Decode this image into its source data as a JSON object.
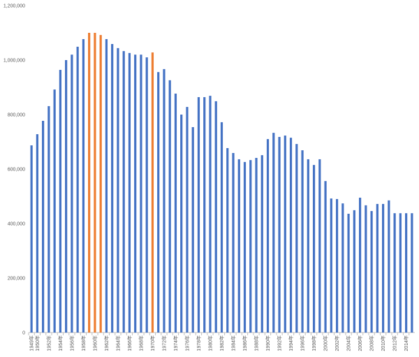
{
  "chart_data": {
    "type": "bar",
    "categories": [
      "1949年",
      "1950年",
      null,
      "1952年",
      null,
      "1954年",
      null,
      "1956年",
      null,
      "1958年",
      null,
      "1960年",
      null,
      "1962年",
      null,
      "1964年",
      null,
      "1966年",
      null,
      "1968年",
      null,
      "1970年",
      null,
      "1972年",
      null,
      "1974年",
      null,
      "1976年",
      null,
      "1978年",
      null,
      "1980年",
      null,
      "1982年",
      null,
      "1984年",
      null,
      "1986年",
      null,
      "1988年",
      null,
      "1990年",
      null,
      "1992年",
      null,
      "1994年",
      null,
      "1996年",
      null,
      "1998年",
      null,
      "2000年",
      null,
      "2002年",
      null,
      "2004年",
      null,
      "2006年",
      null,
      "2008年",
      null,
      "2010年",
      null,
      "2012年",
      null,
      "2014年",
      null
    ],
    "values": [
      687000,
      728000,
      777000,
      831000,
      892000,
      964000,
      1000000,
      1020000,
      1049000,
      1077000,
      1100000,
      1100000,
      1092000,
      1077000,
      1059000,
      1044000,
      1033000,
      1026000,
      1020000,
      1020000,
      1010000,
      1028000,
      956000,
      967000,
      926000,
      877000,
      800000,
      828000,
      754000,
      864000,
      864000,
      869000,
      849000,
      772000,
      677000,
      659000,
      636000,
      626000,
      633000,
      641000,
      651000,
      710000,
      733000,
      718000,
      723000,
      715000,
      692000,
      669000,
      636000,
      615000,
      636000,
      556000,
      492000,
      490000,
      474000,
      436000,
      449000,
      495000,
      467000,
      446000,
      472000,
      472000,
      485000,
      438000,
      438000,
      438000,
      438000
    ],
    "colors": [
      "#4472c4",
      "#4472c4",
      "#4472c4",
      "#4472c4",
      "#4472c4",
      "#4472c4",
      "#4472c4",
      "#4472c4",
      "#4472c4",
      "#4472c4",
      "#ed7d31",
      "#ed7d31",
      "#ed7d31",
      "#4472c4",
      "#4472c4",
      "#4472c4",
      "#4472c4",
      "#4472c4",
      "#4472c4",
      "#4472c4",
      "#4472c4",
      "#ed7d31",
      "#4472c4",
      "#4472c4",
      "#4472c4",
      "#4472c4",
      "#4472c4",
      "#4472c4",
      "#4472c4",
      "#4472c4",
      "#4472c4",
      "#4472c4",
      "#4472c4",
      "#4472c4",
      "#4472c4",
      "#4472c4",
      "#4472c4",
      "#4472c4",
      "#4472c4",
      "#4472c4",
      "#4472c4",
      "#4472c4",
      "#4472c4",
      "#4472c4",
      "#4472c4",
      "#4472c4",
      "#4472c4",
      "#4472c4",
      "#4472c4",
      "#4472c4",
      "#4472c4",
      "#4472c4",
      "#4472c4",
      "#4472c4",
      "#4472c4",
      "#4472c4",
      "#4472c4",
      "#4472c4",
      "#4472c4",
      "#4472c4",
      "#4472c4",
      "#4472c4",
      "#4472c4",
      "#4472c4",
      "#4472c4",
      "#4472c4",
      "#4472c4"
    ],
    "ylim": [
      0,
      1200000
    ],
    "yticks": [
      0,
      {
        "value": 200000,
        "label": "200,000"
      },
      {
        "value": 400000,
        "label": "400,000"
      },
      {
        "value": 600000,
        "label": "600,000"
      },
      {
        "value": 800000,
        "label": "800,000"
      },
      {
        "value": 1000000,
        "label": "1,000,000"
      },
      {
        "value": 1200000,
        "label": "1,200,000"
      }
    ],
    "grid": false
  }
}
